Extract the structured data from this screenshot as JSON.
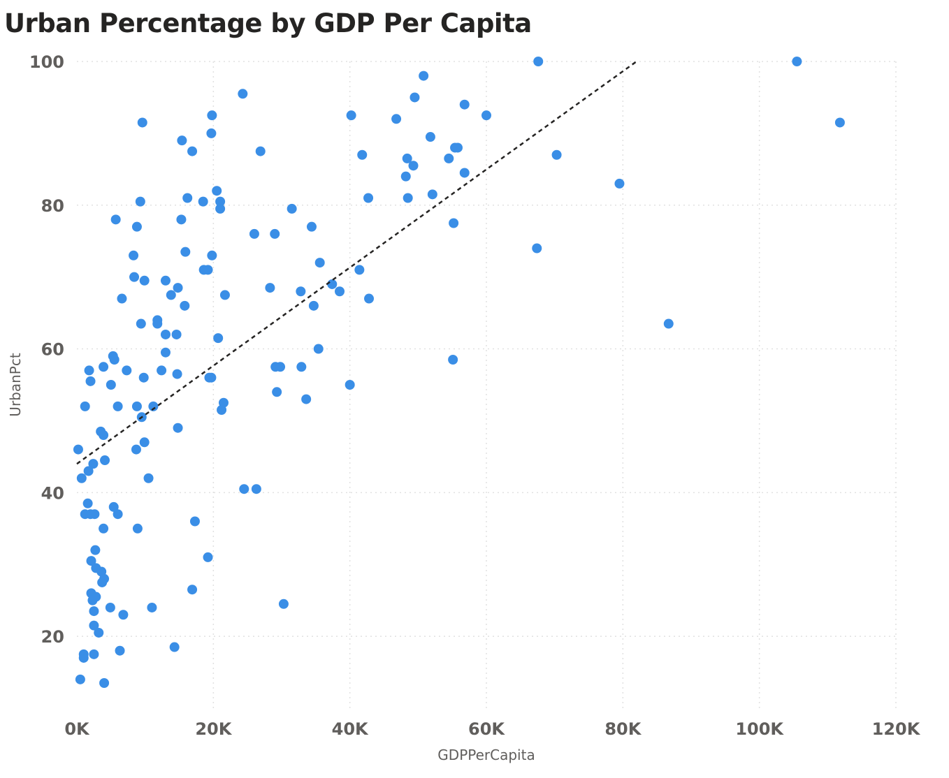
{
  "chart_data": {
    "type": "scatter",
    "title": "Urban Percentage by GDP Per Capita",
    "xlabel": "GDPPerCapita",
    "ylabel": "UrbanPct",
    "xlim": [
      0,
      120000
    ],
    "ylim": [
      10,
      100
    ],
    "x_ticks": [
      0,
      20000,
      40000,
      60000,
      80000,
      100000,
      120000
    ],
    "x_tick_labels": [
      "0K",
      "20K",
      "40K",
      "60K",
      "80K",
      "100K",
      "120K"
    ],
    "y_ticks": [
      20,
      40,
      60,
      80,
      100
    ],
    "y_tick_labels": [
      "20",
      "40",
      "60",
      "80",
      "100"
    ],
    "grid": true,
    "point_color": "#3a8ee6",
    "trend_line": {
      "style": "dashed",
      "x": [
        0,
        82000
      ],
      "y": [
        44,
        100
      ]
    },
    "series": [
      {
        "values": [
          [
            200,
            46
          ],
          [
            500,
            14
          ],
          [
            700,
            42
          ],
          [
            1000,
            17
          ],
          [
            1000,
            17.5
          ],
          [
            1200,
            52
          ],
          [
            1200,
            37
          ],
          [
            1600,
            38.5
          ],
          [
            1700,
            43
          ],
          [
            1800,
            57
          ],
          [
            2000,
            55.5
          ],
          [
            2000,
            37
          ],
          [
            2100,
            30.5
          ],
          [
            2100,
            26
          ],
          [
            2300,
            25
          ],
          [
            2400,
            44
          ],
          [
            2500,
            17.5
          ],
          [
            2500,
            23.5
          ],
          [
            2500,
            21.5
          ],
          [
            2600,
            37
          ],
          [
            2700,
            32
          ],
          [
            2800,
            29.5
          ],
          [
            2800,
            25.5
          ],
          [
            3200,
            20.5
          ],
          [
            3500,
            48.5
          ],
          [
            3600,
            29
          ],
          [
            3700,
            27.5
          ],
          [
            3900,
            57.5
          ],
          [
            3900,
            48
          ],
          [
            3900,
            35
          ],
          [
            4000,
            28
          ],
          [
            4000,
            13.5
          ],
          [
            4100,
            44.5
          ],
          [
            4900,
            24
          ],
          [
            5000,
            55
          ],
          [
            5300,
            59
          ],
          [
            5400,
            38
          ],
          [
            5500,
            58.5
          ],
          [
            5700,
            78
          ],
          [
            6000,
            37
          ],
          [
            6000,
            52
          ],
          [
            6300,
            18
          ],
          [
            6600,
            67
          ],
          [
            6800,
            23
          ],
          [
            7300,
            57
          ],
          [
            8300,
            73
          ],
          [
            8400,
            70
          ],
          [
            8700,
            46
          ],
          [
            8800,
            77
          ],
          [
            8800,
            52
          ],
          [
            8900,
            35
          ],
          [
            9300,
            80.5
          ],
          [
            9400,
            63.5
          ],
          [
            9500,
            50.5
          ],
          [
            9600,
            91.5
          ],
          [
            9800,
            56
          ],
          [
            9900,
            47
          ],
          [
            9900,
            69.5
          ],
          [
            10500,
            42
          ],
          [
            11000,
            24
          ],
          [
            11200,
            52
          ],
          [
            11800,
            64
          ],
          [
            11800,
            63.5
          ],
          [
            12400,
            57
          ],
          [
            13000,
            69.5
          ],
          [
            13000,
            59.5
          ],
          [
            13000,
            62
          ],
          [
            13800,
            67.5
          ],
          [
            14300,
            18.5
          ],
          [
            14600,
            62
          ],
          [
            14700,
            56.5
          ],
          [
            14800,
            68.5
          ],
          [
            14800,
            49
          ],
          [
            15300,
            78
          ],
          [
            15400,
            89
          ],
          [
            15800,
            66
          ],
          [
            15900,
            73.5
          ],
          [
            16200,
            81
          ],
          [
            16900,
            87.5
          ],
          [
            16900,
            26.5
          ],
          [
            17300,
            36
          ],
          [
            18500,
            80.5
          ],
          [
            18600,
            71
          ],
          [
            19200,
            71
          ],
          [
            19200,
            31
          ],
          [
            19400,
            56
          ],
          [
            19700,
            56
          ],
          [
            19700,
            90
          ],
          [
            19800,
            92.5
          ],
          [
            19800,
            73
          ],
          [
            20500,
            82
          ],
          [
            20700,
            61.5
          ],
          [
            21000,
            80.5
          ],
          [
            21000,
            79.5
          ],
          [
            21200,
            51.5
          ],
          [
            21500,
            52.5
          ],
          [
            21700,
            67.5
          ],
          [
            24300,
            95.5
          ],
          [
            24500,
            40.5
          ],
          [
            26000,
            76
          ],
          [
            26300,
            40.5
          ],
          [
            26900,
            87.5
          ],
          [
            28300,
            68.5
          ],
          [
            29000,
            76
          ],
          [
            29100,
            57.5
          ],
          [
            29300,
            54
          ],
          [
            29800,
            57.5
          ],
          [
            30300,
            24.5
          ],
          [
            31500,
            79.5
          ],
          [
            32800,
            68
          ],
          [
            32900,
            57.5
          ],
          [
            33600,
            53
          ],
          [
            34400,
            77
          ],
          [
            34700,
            66
          ],
          [
            35400,
            60
          ],
          [
            35600,
            72
          ],
          [
            37400,
            69
          ],
          [
            38500,
            68
          ],
          [
            40000,
            55
          ],
          [
            40200,
            92.5
          ],
          [
            41400,
            71
          ],
          [
            41800,
            87
          ],
          [
            42700,
            81
          ],
          [
            42800,
            67
          ],
          [
            46800,
            92
          ],
          [
            48200,
            84
          ],
          [
            48400,
            86.5
          ],
          [
            48500,
            81
          ],
          [
            49300,
            85.5
          ],
          [
            49500,
            95
          ],
          [
            50800,
            98
          ],
          [
            51800,
            89.5
          ],
          [
            52100,
            81.5
          ],
          [
            54500,
            86.5
          ],
          [
            55100,
            58.5
          ],
          [
            55200,
            77.5
          ],
          [
            55400,
            88
          ],
          [
            55800,
            88
          ],
          [
            56800,
            94
          ],
          [
            56800,
            84.5
          ],
          [
            60000,
            92.5
          ],
          [
            67400,
            74
          ],
          [
            67600,
            100
          ],
          [
            70300,
            87
          ],
          [
            79500,
            83
          ],
          [
            86700,
            63.5
          ],
          [
            105500,
            100
          ],
          [
            111800,
            91.5
          ]
        ]
      }
    ]
  }
}
